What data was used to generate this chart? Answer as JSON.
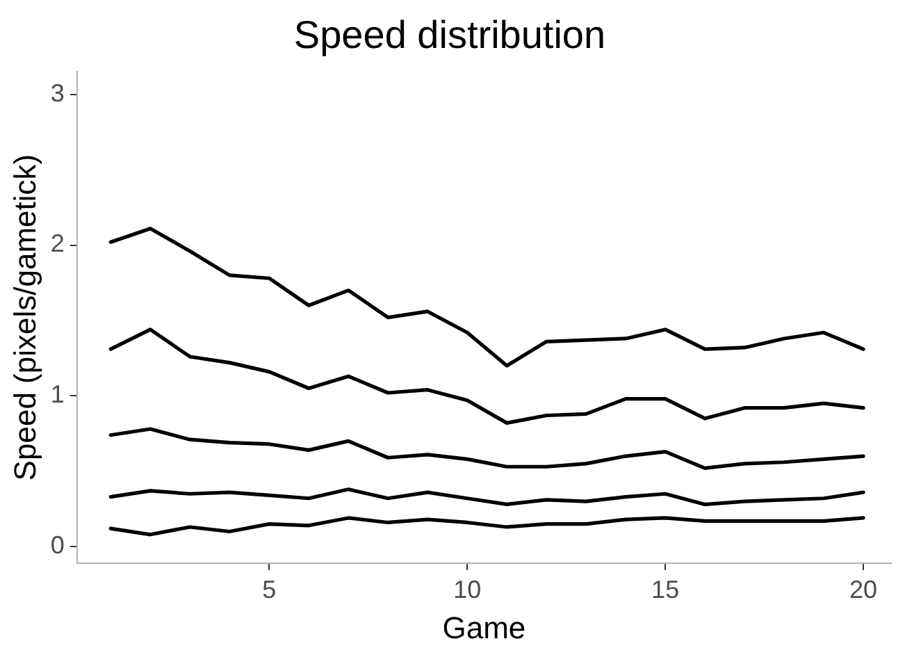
{
  "chart_data": {
    "type": "line",
    "title": "Speed distribution",
    "xlabel": "Game",
    "ylabel": "Speed (pixels/gametick)",
    "x": [
      1,
      2,
      3,
      4,
      5,
      6,
      7,
      8,
      9,
      10,
      11,
      12,
      13,
      14,
      15,
      16,
      17,
      18,
      19,
      20
    ],
    "xlim": [
      0.15,
      20.7
    ],
    "xticks": [
      5,
      10,
      15,
      20
    ],
    "ylim": [
      -0.11,
      3.15
    ],
    "yticks": [
      0,
      1,
      2,
      3
    ],
    "grid": false,
    "legend": false,
    "marker": "none",
    "line_style": "solid",
    "series": [
      {
        "color": "#000000",
        "values": [
          2.02,
          2.11,
          1.96,
          1.8,
          1.78,
          1.6,
          1.7,
          1.52,
          1.56,
          1.42,
          1.2,
          1.36,
          1.37,
          1.38,
          1.44,
          1.31,
          1.32,
          1.38,
          1.42,
          1.31
        ]
      },
      {
        "color": "#000000",
        "values": [
          1.31,
          1.44,
          1.26,
          1.22,
          1.16,
          1.05,
          1.13,
          1.02,
          1.04,
          0.97,
          0.82,
          0.87,
          0.88,
          0.98,
          0.98,
          0.85,
          0.92,
          0.92,
          0.95,
          0.92
        ]
      },
      {
        "color": "#000000",
        "values": [
          0.74,
          0.78,
          0.71,
          0.69,
          0.68,
          0.64,
          0.7,
          0.59,
          0.61,
          0.58,
          0.53,
          0.53,
          0.55,
          0.6,
          0.63,
          0.52,
          0.55,
          0.56,
          0.58,
          0.6
        ]
      },
      {
        "color": "#000000",
        "values": [
          0.33,
          0.37,
          0.35,
          0.36,
          0.34,
          0.32,
          0.38,
          0.32,
          0.36,
          0.32,
          0.28,
          0.31,
          0.3,
          0.33,
          0.35,
          0.28,
          0.3,
          0.31,
          0.32,
          0.36
        ]
      },
      {
        "color": "#000000",
        "values": [
          0.12,
          0.08,
          0.13,
          0.1,
          0.15,
          0.14,
          0.19,
          0.16,
          0.18,
          0.16,
          0.13,
          0.15,
          0.15,
          0.18,
          0.19,
          0.17,
          0.17,
          0.17,
          0.17,
          0.19
        ]
      }
    ]
  }
}
